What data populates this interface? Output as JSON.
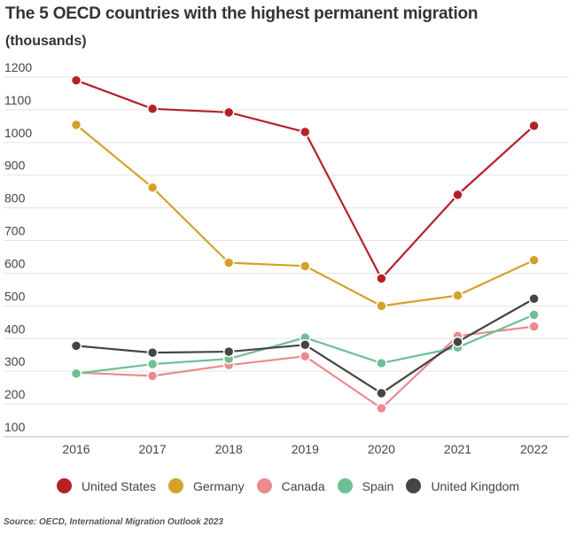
{
  "chart_data": {
    "type": "line",
    "title": "The 5 OECD countries with the highest permanent migration",
    "subtitle": "(thousands)",
    "xlabel": "",
    "ylabel": "",
    "x": [
      "2016",
      "2017",
      "2018",
      "2019",
      "2020",
      "2021",
      "2022"
    ],
    "yticks": [
      100,
      200,
      300,
      400,
      500,
      600,
      700,
      800,
      900,
      1000,
      1100,
      1200
    ],
    "ylim": [
      100,
      1200
    ],
    "grid": true,
    "legend_position": "bottom",
    "series": [
      {
        "name": "United States",
        "color": "#b5202a",
        "values": [
          1190,
          1103,
          1092,
          1032,
          584,
          840,
          1051
        ]
      },
      {
        "name": "Germany",
        "color": "#d4a12b",
        "values": [
          1054,
          862,
          632,
          622,
          500,
          532,
          640
        ]
      },
      {
        "name": "Canada",
        "color": "#ec8a8e",
        "values": [
          296,
          286,
          319,
          346,
          187,
          408,
          437
        ]
      },
      {
        "name": "Spain",
        "color": "#6fbf94",
        "values": [
          293,
          322,
          338,
          403,
          325,
          373,
          473
        ]
      },
      {
        "name": "United Kingdom",
        "color": "#454545",
        "values": [
          378,
          357,
          360,
          381,
          233,
          390,
          522
        ]
      }
    ],
    "source": "Source: OECD, International Migration Outlook 2023"
  }
}
